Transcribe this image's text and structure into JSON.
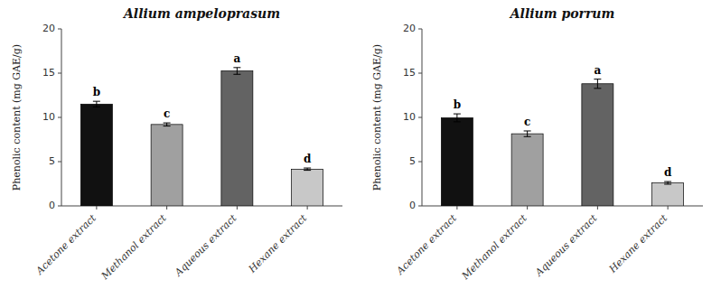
{
  "chart_data": [
    {
      "type": "bar",
      "title": "Allium ampeloprasum",
      "categories": [
        "Acetone extract",
        "Methanol extract",
        "Aqueous extract",
        "Hexane extract"
      ],
      "values": [
        11.5,
        9.2,
        15.25,
        4.15
      ],
      "errors": [
        0.32,
        0.18,
        0.38,
        0.13
      ],
      "annotations": [
        "b",
        "c",
        "a",
        "d"
      ],
      "colors": [
        "#111111",
        "#a0a0a0",
        "#636363",
        "#c8c8c8"
      ],
      "ylabel": "Phenolic content (mg GAE/g)",
      "ylim": [
        0,
        20
      ],
      "yticks": [
        0,
        5,
        10,
        15,
        20
      ],
      "grid": false
    },
    {
      "type": "bar",
      "title": "Allium porrum",
      "categories": [
        "Acetone extract",
        "Methanol extract",
        "Aqueous extract",
        "Hexane extract"
      ],
      "values": [
        9.95,
        8.15,
        13.8,
        2.6
      ],
      "errors": [
        0.45,
        0.32,
        0.52,
        0.15
      ],
      "annotations": [
        "b",
        "c",
        "a",
        "d"
      ],
      "colors": [
        "#111111",
        "#a0a0a0",
        "#636363",
        "#c8c8c8"
      ],
      "ylabel": "Phenolic content (mg GAE/g)",
      "ylim": [
        0,
        20
      ],
      "yticks": [
        0,
        5,
        10,
        15,
        20
      ],
      "grid": false
    }
  ]
}
